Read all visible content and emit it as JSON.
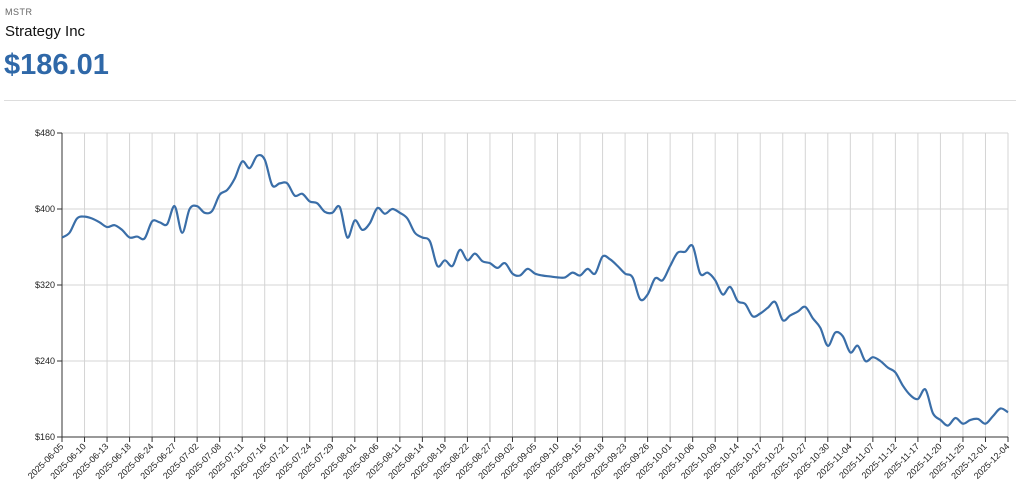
{
  "header": {
    "ticker": "MSTR",
    "name": "Strategy Inc",
    "price": "$186.01"
  },
  "chart_data": {
    "type": "line",
    "categories": [
      "2025-06-05",
      null,
      null,
      "2025-06-10",
      null,
      null,
      "2025-06-13",
      null,
      null,
      "2025-06-18",
      null,
      null,
      "2025-06-24",
      null,
      null,
      "2025-06-27",
      null,
      null,
      "2025-07-02",
      null,
      null,
      "2025-07-08",
      null,
      null,
      "2025-07-11",
      null,
      null,
      "2025-07-16",
      null,
      null,
      "2025-07-21",
      null,
      null,
      "2025-07-24",
      null,
      null,
      "2025-07-29",
      null,
      null,
      "2025-08-01",
      null,
      null,
      "2025-08-06",
      null,
      null,
      "2025-08-11",
      null,
      null,
      "2025-08-14",
      null,
      null,
      "2025-08-19",
      null,
      null,
      "2025-08-22",
      null,
      null,
      "2025-08-27",
      null,
      null,
      "2025-09-02",
      null,
      null,
      "2025-09-05",
      null,
      null,
      "2025-09-10",
      null,
      null,
      "2025-09-15",
      null,
      null,
      "2025-09-18",
      null,
      null,
      "2025-09-23",
      null,
      null,
      "2025-09-26",
      null,
      null,
      "2025-10-01",
      null,
      null,
      "2025-10-06",
      null,
      null,
      "2025-10-09",
      null,
      null,
      "2025-10-14",
      null,
      null,
      "2025-10-17",
      null,
      null,
      "2025-10-22",
      null,
      null,
      "2025-10-27",
      null,
      null,
      "2025-10-30",
      null,
      null,
      "2025-11-04",
      null,
      null,
      "2025-11-07",
      null,
      null,
      "2025-11-12",
      null,
      null,
      "2025-11-17",
      null,
      null,
      "2025-11-20",
      null,
      null,
      "2025-11-25",
      null,
      null,
      "2025-12-01",
      null,
      null,
      "2025-12-04"
    ],
    "values": [
      370,
      375,
      390,
      392,
      390,
      386,
      381,
      383,
      378,
      370,
      371,
      369,
      387,
      386,
      384,
      403,
      375,
      400,
      403,
      396,
      398,
      415,
      420,
      432,
      450,
      443,
      456,
      452,
      425,
      427,
      427,
      414,
      416,
      408,
      406,
      397,
      396,
      402,
      370,
      388,
      378,
      385,
      401,
      395,
      400,
      396,
      390,
      375,
      370,
      366,
      340,
      346,
      340,
      357,
      346,
      353,
      345,
      343,
      338,
      343,
      332,
      330,
      337,
      332,
      330,
      329,
      328,
      328,
      333,
      330,
      337,
      332,
      350,
      347,
      340,
      332,
      328,
      305,
      310,
      327,
      325,
      340,
      354,
      355,
      361,
      332,
      333,
      325,
      310,
      318,
      303,
      300,
      287,
      290,
      296,
      302,
      283,
      288,
      292,
      297,
      285,
      275,
      256,
      270,
      266,
      249,
      256,
      240,
      244,
      240,
      233,
      228,
      214,
      204,
      200,
      210,
      185,
      178,
      172,
      180,
      174,
      178,
      179,
      174,
      182,
      190,
      186
    ],
    "color": "#3a6ea8",
    "ylim": [
      160,
      480
    ],
    "yticks": [
      {
        "value": 160,
        "label": "$160"
      },
      {
        "value": 240,
        "label": "$240"
      },
      {
        "value": 320,
        "label": "$320"
      },
      {
        "value": 400,
        "label": "$400"
      },
      {
        "value": 480,
        "label": "$480"
      }
    ],
    "grid": true
  }
}
